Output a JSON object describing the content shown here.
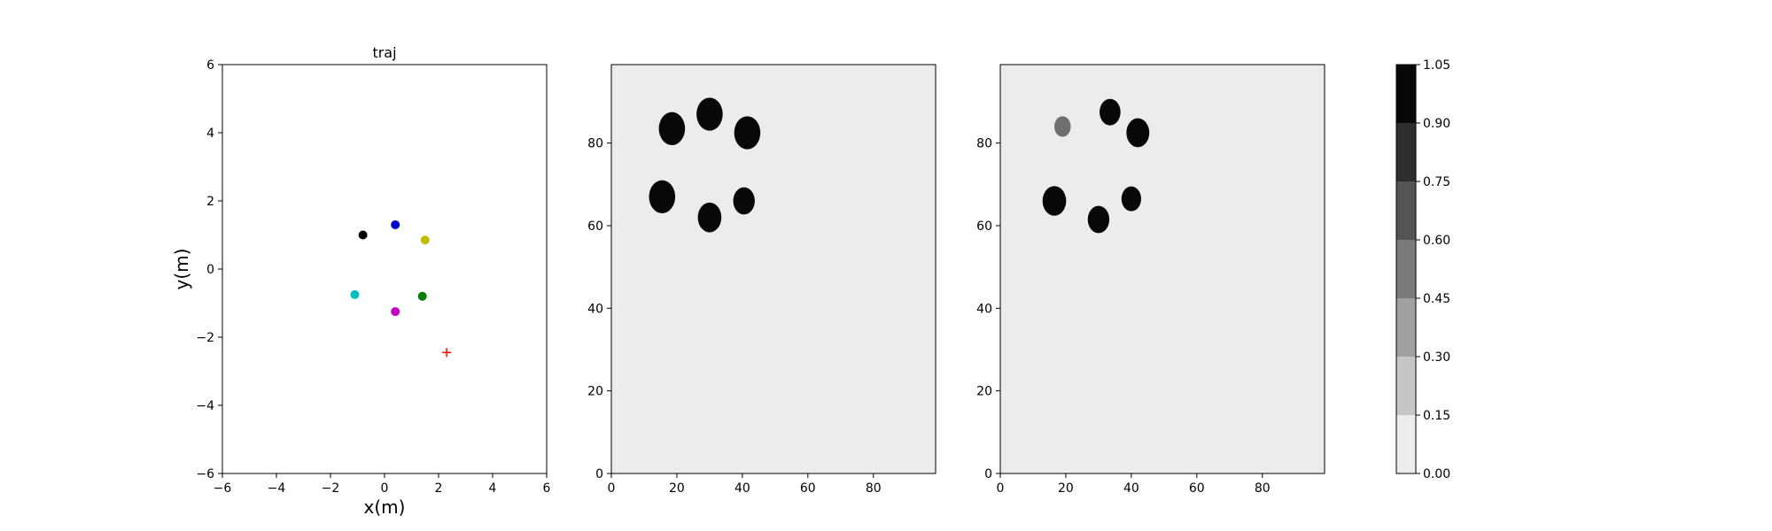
{
  "chart_data": [
    {
      "type": "scatter",
      "title": "traj",
      "xlabel": "x(m)",
      "ylabel": "y(m)",
      "xlim": [
        -6,
        6
      ],
      "ylim": [
        -6,
        6
      ],
      "xticks": [
        -6,
        -4,
        -2,
        0,
        2,
        4,
        6
      ],
      "yticks": [
        -6,
        -4,
        -2,
        0,
        2,
        4,
        6
      ],
      "grid": false,
      "points": [
        {
          "x": -0.8,
          "y": 1.0,
          "color": "#000000",
          "marker": "circle"
        },
        {
          "x": 0.4,
          "y": 1.3,
          "color": "#0000cc",
          "marker": "circle"
        },
        {
          "x": 1.5,
          "y": 0.85,
          "color": "#bfbf00",
          "marker": "circle"
        },
        {
          "x": -1.1,
          "y": -0.75,
          "color": "#00bfbf",
          "marker": "circle"
        },
        {
          "x": 0.4,
          "y": -1.25,
          "color": "#bf00bf",
          "marker": "circle"
        },
        {
          "x": 1.4,
          "y": -0.8,
          "color": "#007f00",
          "marker": "circle"
        },
        {
          "x": 2.3,
          "y": -2.45,
          "color": "#ff0000",
          "marker": "plus"
        }
      ]
    },
    {
      "type": "heatmap",
      "xlim": [
        0,
        99
      ],
      "ylim": [
        0,
        99
      ],
      "xticks": [
        0,
        20,
        40,
        60,
        80
      ],
      "yticks": [
        0,
        20,
        40,
        60,
        80
      ],
      "background_value": 0.05,
      "blobs": [
        {
          "x": 18.5,
          "y": 83.5,
          "r": 4.0,
          "value": 1.0
        },
        {
          "x": 30.0,
          "y": 87.0,
          "r": 4.0,
          "value": 1.0
        },
        {
          "x": 41.5,
          "y": 82.5,
          "r": 4.0,
          "value": 1.0
        },
        {
          "x": 15.5,
          "y": 67.0,
          "r": 4.0,
          "value": 1.0
        },
        {
          "x": 40.5,
          "y": 66.0,
          "r": 3.3,
          "value": 1.0
        },
        {
          "x": 30.0,
          "y": 62.0,
          "r": 3.6,
          "value": 1.0
        }
      ]
    },
    {
      "type": "heatmap",
      "xlim": [
        0,
        99
      ],
      "ylim": [
        0,
        99
      ],
      "xticks": [
        0,
        20,
        40,
        60,
        80
      ],
      "yticks": [
        0,
        20,
        40,
        60,
        80
      ],
      "background_value": 0.05,
      "blobs": [
        {
          "x": 19.0,
          "y": 84.0,
          "r": 2.5,
          "value": 0.55
        },
        {
          "x": 33.5,
          "y": 87.5,
          "r": 3.2,
          "value": 1.0
        },
        {
          "x": 42.0,
          "y": 82.5,
          "r": 3.5,
          "value": 1.0
        },
        {
          "x": 16.5,
          "y": 66.0,
          "r": 3.6,
          "value": 1.0
        },
        {
          "x": 40.0,
          "y": 66.5,
          "r": 3.0,
          "value": 1.0
        },
        {
          "x": 30.0,
          "y": 61.5,
          "r": 3.3,
          "value": 1.0
        }
      ]
    },
    {
      "type": "colorbar",
      "range": [
        0.0,
        1.05
      ],
      "levels": [
        0.0,
        0.15,
        0.3,
        0.45,
        0.6,
        0.75,
        0.9,
        1.05
      ],
      "tick_labels": [
        "0.00",
        "0.15",
        "0.30",
        "0.45",
        "0.60",
        "0.75",
        "0.90",
        "1.05"
      ],
      "colors": [
        "#ececec",
        "#c6c6c6",
        "#a0a0a0",
        "#7b7b7b",
        "#545454",
        "#2e2e2e",
        "#080808"
      ]
    }
  ]
}
